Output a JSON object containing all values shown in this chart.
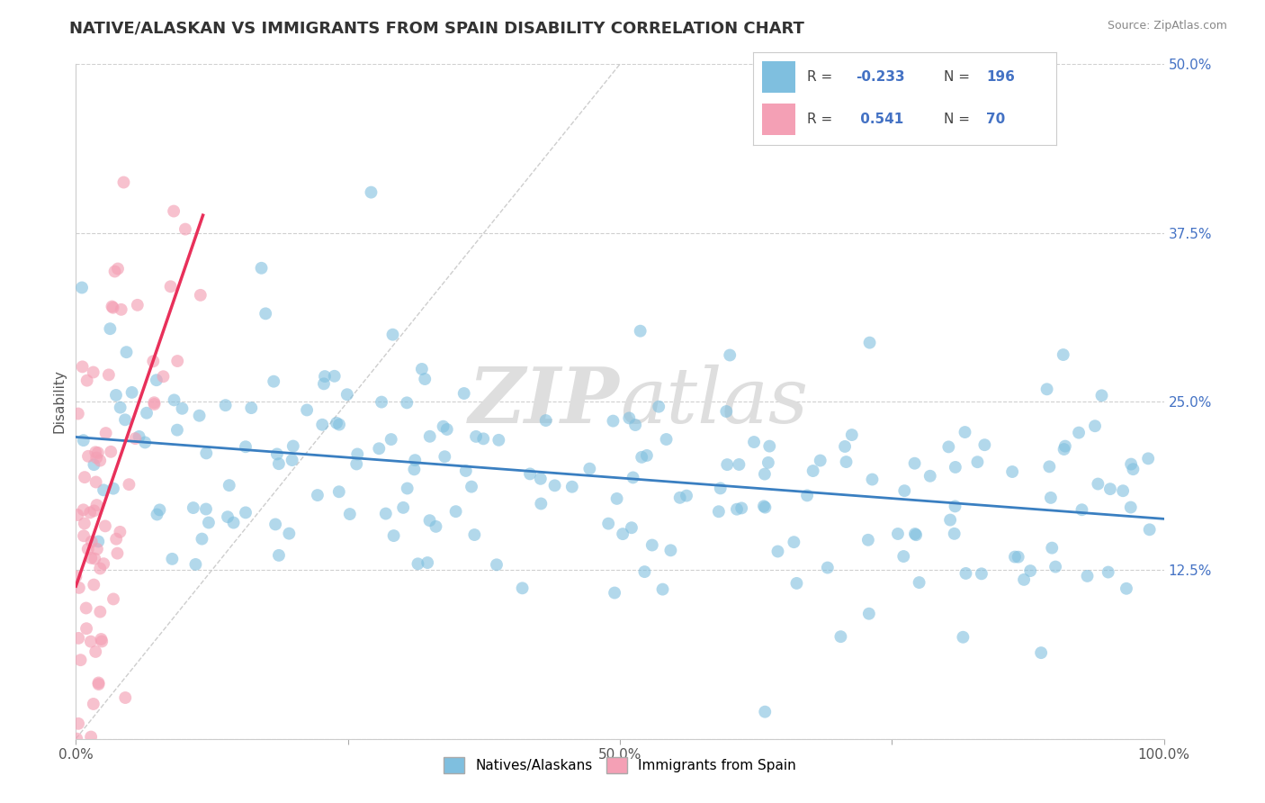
{
  "title": "NATIVE/ALASKAN VS IMMIGRANTS FROM SPAIN DISABILITY CORRELATION CHART",
  "source": "Source: ZipAtlas.com",
  "ylabel": "Disability",
  "watermark": "ZIPAtlas",
  "xmin": 0.0,
  "xmax": 1.0,
  "ymin": 0.0,
  "ymax": 0.5,
  "yticks": [
    0.0,
    0.125,
    0.25,
    0.375,
    0.5
  ],
  "ytick_labels_right": [
    "",
    "12.5%",
    "25.0%",
    "37.5%",
    "50.0%"
  ],
  "xticks": [
    0.0,
    0.25,
    0.5,
    0.75,
    1.0
  ],
  "xtick_labels": [
    "0.0%",
    "",
    "50.0%",
    "",
    "100.0%"
  ],
  "blue_color": "#7fbfdf",
  "pink_color": "#f4a0b5",
  "blue_line_color": "#3a7fc1",
  "pink_line_color": "#e8305a",
  "legend_blue_label": "Natives/Alaskans",
  "legend_pink_label": "Immigrants from Spain",
  "R_blue": -0.233,
  "N_blue": 196,
  "R_pink": 0.541,
  "N_pink": 70,
  "title_fontsize": 13,
  "label_fontsize": 11,
  "tick_fontsize": 11,
  "background_color": "#ffffff",
  "grid_color": "#d0d0d0",
  "seed_blue": 42,
  "seed_pink": 7
}
